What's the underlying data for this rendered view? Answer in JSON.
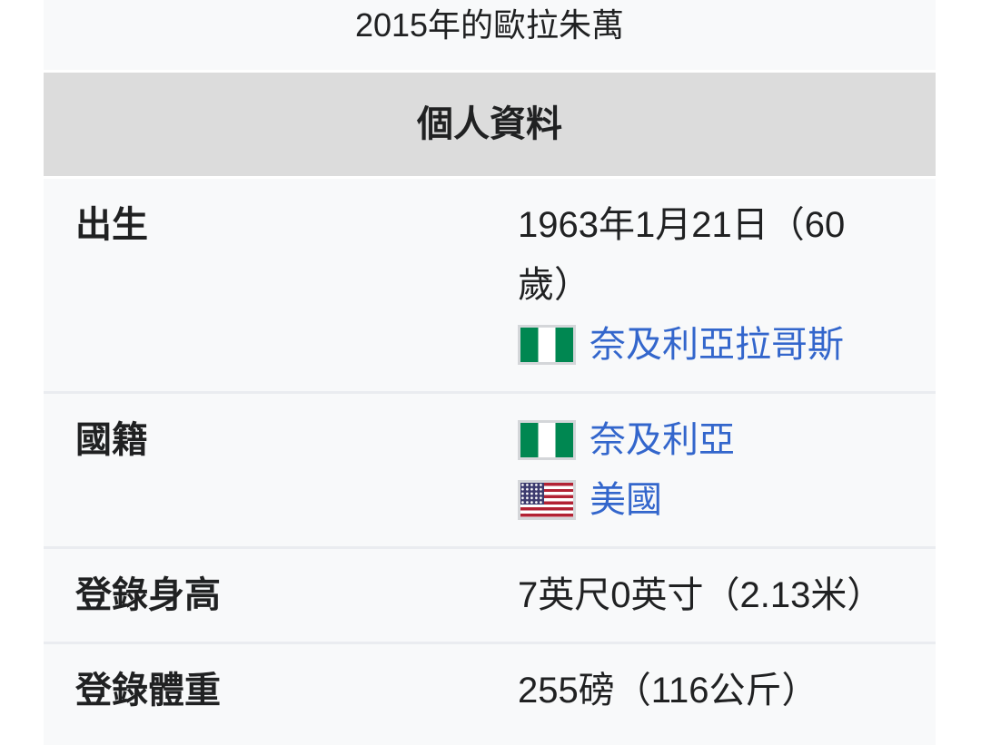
{
  "colors": {
    "page_background": "#ffffff",
    "infobox_background": "#f8f9fa",
    "header_background": "#dcdcdc",
    "divider": "#eaecf0",
    "text": "#202122",
    "link": "#3366cc",
    "nigeria_flag_green": "#008751",
    "us_flag_red": "#b22234",
    "us_flag_blue": "#3c3b6e"
  },
  "infobox": {
    "caption": "2015年的歐拉朱萬",
    "section_header": "個人資料",
    "rows": [
      {
        "label": "出生",
        "date": "1963年1月21日（60歲）",
        "links": [
          {
            "icon": "nigeria-flag-icon",
            "text": "奈及利亞拉哥斯"
          }
        ]
      },
      {
        "label": "國籍",
        "links": [
          {
            "icon": "nigeria-flag-icon",
            "text": "奈及利亞"
          },
          {
            "icon": "us-flag-icon",
            "text": "美國"
          }
        ]
      },
      {
        "label": "登錄身高",
        "value": "7英尺0英寸（2.13米）"
      },
      {
        "label": "登錄體重",
        "value": "255磅（116公斤）"
      }
    ]
  }
}
